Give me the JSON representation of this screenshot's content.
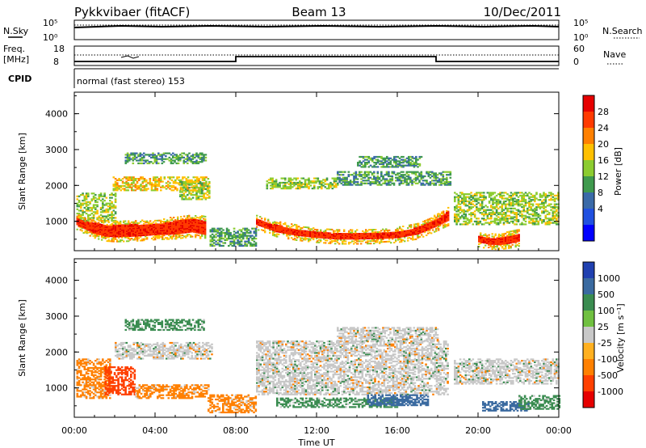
{
  "header": {
    "station": "Pykkvibaer (fitACF)",
    "beam": "Beam 13",
    "date": "10/Dec/2011"
  },
  "strips": {
    "nsky_label": "N.Sky",
    "nsearch_label": "N.Search",
    "freq_label_1": "Freq.",
    "freq_label_2": "[MHz]",
    "nave_label": "Nave",
    "cpid_label": "CPID",
    "cpid_text": "normal (fast stereo) 153",
    "noise_left_top": "10^5",
    "noise_left_bottom": "10^0",
    "noise_right_top": "10^5",
    "noise_right_bottom": "10^0",
    "freq_ticks": [
      "18",
      "8"
    ],
    "nave_ticks": [
      "60",
      "0"
    ]
  },
  "chart_data": [
    {
      "type": "heatmap",
      "title": "",
      "xlabel": "Time UT",
      "ylabel": "Slant Range [km]",
      "xlim_hours": [
        0,
        24
      ],
      "ylim": [
        180,
        4600
      ],
      "x_tick_labels": [
        "00:00",
        "04:00",
        "08:00",
        "12:00",
        "16:00",
        "20:00",
        "00:00"
      ],
      "y_ticks": [
        1000,
        2000,
        3000,
        4000
      ],
      "y_tick_labels": [
        "1000",
        "2000",
        "3000",
        "4000"
      ],
      "colorbar": {
        "label": "Power [dB]",
        "ticks": [
          "28",
          "24",
          "20",
          "16",
          "12",
          "8",
          "4"
        ],
        "colors": [
          "#e60000",
          "#ff3a00",
          "#ff8000",
          "#ffc000",
          "#8ccc30",
          "#3f9a4e",
          "#3a6aa8",
          "#2050e0",
          "#0000ff"
        ]
      },
      "bands": [
        {
          "name": "main",
          "points": [
            [
              0.1,
              880,
              1080
            ],
            [
              0.5,
              760,
              980
            ],
            [
              1.0,
              640,
              940
            ],
            [
              1.5,
              560,
              880
            ],
            [
              2.0,
              540,
              880
            ],
            [
              3.0,
              560,
              900
            ],
            [
              4.0,
              600,
              900
            ],
            [
              5.0,
              620,
              1000
            ],
            [
              5.8,
              680,
              1060
            ],
            [
              6.5,
              600,
              1000
            ]
          ]
        },
        {
          "name": "main",
          "points": [
            [
              9.0,
              880,
              1040
            ],
            [
              10.0,
              680,
              880
            ],
            [
              11.0,
              580,
              760
            ],
            [
              12.0,
              520,
              680
            ],
            [
              13.0,
              480,
              640
            ],
            [
              14.0,
              480,
              650
            ],
            [
              15.0,
              490,
              660
            ],
            [
              16.0,
              520,
              700
            ],
            [
              17.0,
              620,
              820
            ],
            [
              18.0,
              860,
              1080
            ],
            [
              18.5,
              1000,
              1280
            ]
          ]
        },
        {
          "name": "main",
          "points": [
            [
              20.0,
              400,
              560
            ],
            [
              20.5,
              340,
              520
            ],
            [
              21.0,
              320,
              520
            ],
            [
              21.5,
              360,
              580
            ],
            [
              22.0,
              420,
              640
            ]
          ]
        }
      ],
      "patches": [
        {
          "t0": 0.1,
          "t1": 2.0,
          "r0": 1000,
          "r1": 1800,
          "level": 12
        },
        {
          "t0": 1.9,
          "t1": 6.6,
          "r0": 1850,
          "r1": 2250,
          "level": 16
        },
        {
          "t0": 2.5,
          "t1": 6.5,
          "r0": 2600,
          "r1": 2900,
          "level": 8
        },
        {
          "t0": 5.2,
          "t1": 6.7,
          "r0": 1600,
          "r1": 2100,
          "level": 12
        },
        {
          "t0": 9.5,
          "t1": 13.0,
          "r0": 1900,
          "r1": 2200,
          "level": 12
        },
        {
          "t0": 13.0,
          "t1": 18.6,
          "r0": 2000,
          "r1": 2400,
          "level": 8
        },
        {
          "t0": 14.0,
          "t1": 17.2,
          "r0": 2500,
          "r1": 2800,
          "level": 8
        },
        {
          "t0": 18.8,
          "t1": 24.0,
          "r0": 900,
          "r1": 1800,
          "level": 12
        },
        {
          "t0": 6.7,
          "t1": 9.0,
          "r0": 300,
          "r1": 800,
          "level": 8
        }
      ]
    },
    {
      "type": "heatmap",
      "title": "",
      "xlabel": "Time UT",
      "ylabel": "Slant Range [km]",
      "xlim_hours": [
        0,
        24
      ],
      "ylim": [
        180,
        4600
      ],
      "x_tick_labels": [
        "00:00",
        "04:00",
        "08:00",
        "12:00",
        "16:00",
        "20:00",
        "00:00"
      ],
      "y_ticks": [
        1000,
        2000,
        3000,
        4000
      ],
      "y_tick_labels": [
        "1000",
        "2000",
        "3000",
        "4000"
      ],
      "colorbar": {
        "label": "Velocity [m s⁻¹]",
        "ticks": [
          "1000",
          "500",
          "100",
          "25",
          "-25",
          "-100",
          "-500",
          "-1000"
        ],
        "colors": [
          "#2040b0",
          "#3a6aa0",
          "#3a8c50",
          "#70c040",
          "#c8c8c8",
          "#ffb020",
          "#ff8000",
          "#ff4000",
          "#e60000"
        ]
      },
      "patches": [
        {
          "t0": 0.1,
          "t1": 1.8,
          "r0": 700,
          "r1": 1800,
          "level": -100
        },
        {
          "t0": 1.5,
          "t1": 3.0,
          "r0": 800,
          "r1": 1600,
          "level": -500
        },
        {
          "t0": 3.0,
          "t1": 6.6,
          "r0": 700,
          "r1": 1100,
          "level": -100
        },
        {
          "t0": 2.0,
          "t1": 6.8,
          "r0": 1800,
          "r1": 2250,
          "level": 0
        },
        {
          "t0": 2.5,
          "t1": 6.4,
          "r0": 2600,
          "r1": 2900,
          "level": 100
        },
        {
          "t0": 6.6,
          "t1": 9.0,
          "r0": 300,
          "r1": 800,
          "level": -100
        },
        {
          "t0": 9.0,
          "t1": 18.5,
          "r0": 800,
          "r1": 2300,
          "level": 0
        },
        {
          "t0": 13.0,
          "t1": 18.0,
          "r0": 2300,
          "r1": 2700,
          "level": 0
        },
        {
          "t0": 10.0,
          "t1": 16.0,
          "r0": 450,
          "r1": 700,
          "level": 100
        },
        {
          "t0": 14.5,
          "t1": 17.5,
          "r0": 500,
          "r1": 800,
          "level": 500
        },
        {
          "t0": 18.8,
          "t1": 24.0,
          "r0": 1100,
          "r1": 1800,
          "level": 0
        },
        {
          "t0": 20.2,
          "t1": 22.5,
          "r0": 350,
          "r1": 600,
          "level": 500
        },
        {
          "t0": 22.0,
          "t1": 24.0,
          "r0": 400,
          "r1": 800,
          "level": 100
        }
      ]
    }
  ]
}
